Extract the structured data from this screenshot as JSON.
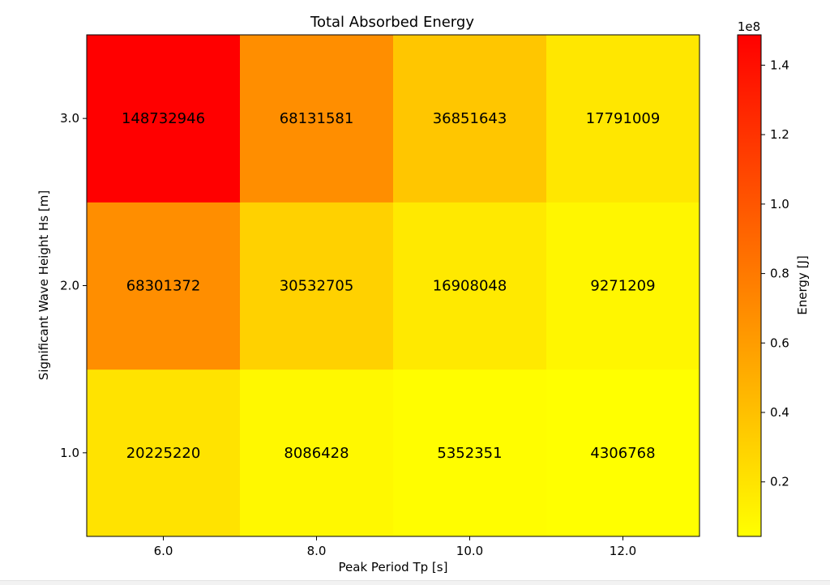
{
  "chart_data": {
    "type": "heatmap",
    "title": "Total Absorbed Energy",
    "xlabel": "Peak Period Tp [s]",
    "ylabel": "Significant Wave Height Hs [m]",
    "x_ticks": [
      "6.0",
      "8.0",
      "10.0",
      "12.0"
    ],
    "y_ticks": [
      "1.0",
      "2.0",
      "3.0"
    ],
    "x": [
      6.0,
      8.0,
      10.0,
      12.0
    ],
    "y": [
      1.0,
      2.0,
      3.0
    ],
    "values": [
      [
        20225220,
        8086428,
        5352351,
        4306768
      ],
      [
        68301372,
        30532705,
        16908048,
        9271209
      ],
      [
        148732946,
        68131581,
        36851643,
        17791009
      ]
    ],
    "colorbar": {
      "label": "Energy [J]",
      "exponent_label": "1e8",
      "ticks": [
        "0.2",
        "0.4",
        "0.6",
        "0.8",
        "1.0",
        "1.2",
        "1.4"
      ],
      "tick_values": [
        0.2,
        0.4,
        0.6,
        0.8,
        1.0,
        1.2,
        1.4
      ],
      "scale": 100000000,
      "min": 4306768,
      "max": 148732946,
      "colormap": "autumn_r",
      "colors": [
        "#ffff00",
        "#ff0000"
      ]
    },
    "grid": false
  }
}
